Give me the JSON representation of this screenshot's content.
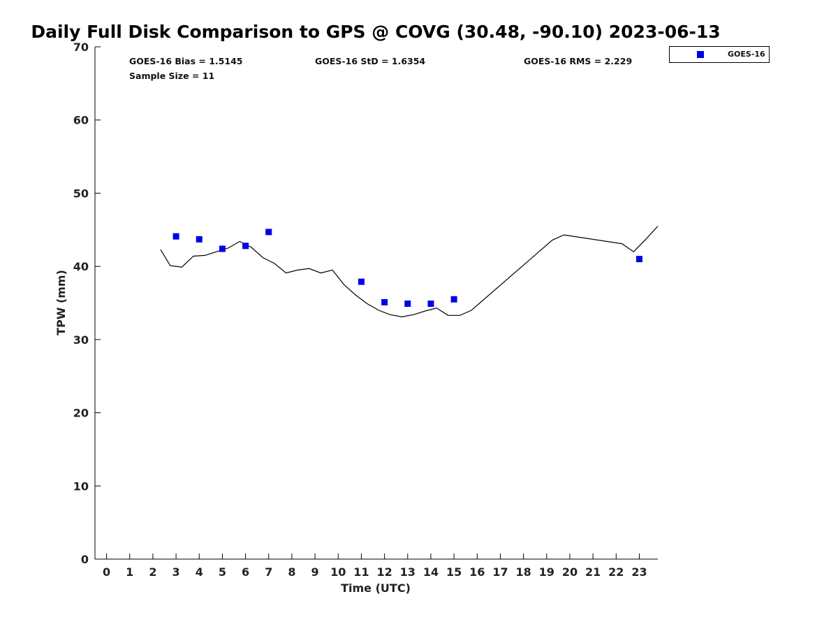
{
  "chart_data": {
    "type": "scatter",
    "title": "Daily Full Disk Comparison to GPS @ COVG (30.48, -90.10) 2023-06-13",
    "xlabel": "Time (UTC)",
    "ylabel": "TPW (mm)",
    "xlim": [
      -0.5,
      23.8
    ],
    "ylim": [
      0,
      70
    ],
    "x_ticks": [
      "0",
      "1",
      "2",
      "3",
      "4",
      "5",
      "6",
      "7",
      "8",
      "9",
      "10",
      "11",
      "12",
      "13",
      "14",
      "15",
      "16",
      "17",
      "18",
      "19",
      "20",
      "21",
      "22",
      "23"
    ],
    "y_ticks": [
      "0",
      "10",
      "20",
      "30",
      "40",
      "50",
      "60",
      "70"
    ],
    "grid": false,
    "legend_position": "top-right",
    "stats": {
      "bias": "GOES-16 Bias = 1.5145",
      "std": "GOES-16 StD = 1.6354",
      "rms": "GOES-16 RMS = 2.229",
      "sample": "Sample Size = 11"
    },
    "series": [
      {
        "name": "GOES-16",
        "kind": "scatter",
        "marker": "square",
        "color": "#0000e6",
        "points": [
          [
            3.0,
            44.1
          ],
          [
            4.0,
            43.7
          ],
          [
            5.0,
            42.4
          ],
          [
            6.0,
            42.8
          ],
          [
            7.0,
            44.7
          ],
          [
            11.0,
            37.9
          ],
          [
            12.0,
            35.1
          ],
          [
            13.0,
            34.9
          ],
          [
            14.0,
            34.9
          ],
          [
            15.0,
            35.5
          ],
          [
            23.0,
            41.0
          ]
        ]
      },
      {
        "kind": "line",
        "color": "#000000",
        "points": [
          [
            2.33,
            42.3
          ],
          [
            2.75,
            40.1
          ],
          [
            3.25,
            39.9
          ],
          [
            3.75,
            41.4
          ],
          [
            4.25,
            41.5
          ],
          [
            4.75,
            42.0
          ],
          [
            5.25,
            42.5
          ],
          [
            5.75,
            43.4
          ],
          [
            6.25,
            42.6
          ],
          [
            6.75,
            41.2
          ],
          [
            7.25,
            40.4
          ],
          [
            7.75,
            39.1
          ],
          [
            8.25,
            39.5
          ],
          [
            8.75,
            39.7
          ],
          [
            9.25,
            39.1
          ],
          [
            9.75,
            39.5
          ],
          [
            10.25,
            37.5
          ],
          [
            10.75,
            36.1
          ],
          [
            11.25,
            34.9
          ],
          [
            11.75,
            34.0
          ],
          [
            12.25,
            33.4
          ],
          [
            12.75,
            33.1
          ],
          [
            13.25,
            33.4
          ],
          [
            13.75,
            33.9
          ],
          [
            14.25,
            34.3
          ],
          [
            14.75,
            33.3
          ],
          [
            15.25,
            33.3
          ],
          [
            15.75,
            34.0
          ],
          [
            19.25,
            43.6
          ],
          [
            19.75,
            44.3
          ],
          [
            22.25,
            43.1
          ],
          [
            22.75,
            42.0
          ],
          [
            23.25,
            43.6
          ],
          [
            23.8,
            45.5
          ]
        ]
      }
    ]
  }
}
